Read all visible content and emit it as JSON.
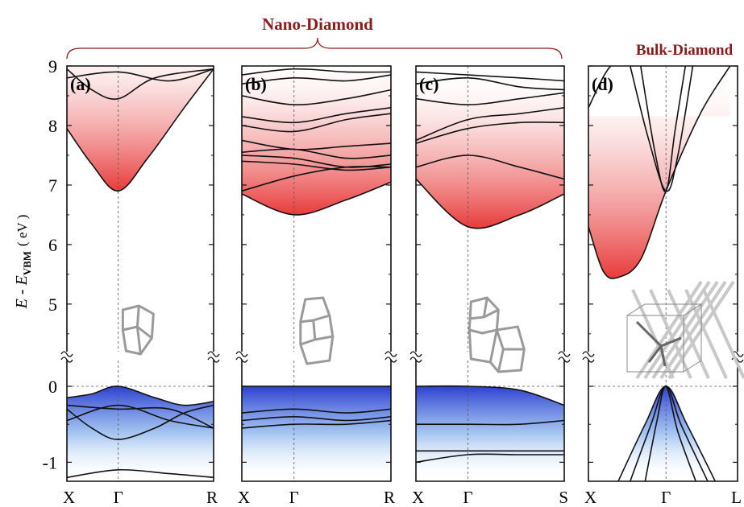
{
  "figure": {
    "group_label": "Nano-Diamond",
    "bulk_label": "Bulk-Diamond",
    "ylabel_main": "E - E",
    "ylabel_sub": "VBM",
    "ylabel_unit": "( eV )",
    "colors": {
      "bands": "#111111",
      "conduction_fill": "#e83a3a",
      "valence_fill": "#2d3fd0",
      "title": "#8b1a1a",
      "structure": "#9a9a9a"
    }
  },
  "chart_data": [
    {
      "type": "line",
      "panel": "(a)",
      "xticks": [
        "X",
        "Γ",
        "R"
      ],
      "ylim_upper": [
        4.2,
        9
      ],
      "ylim_lower": [
        -1.25,
        0.35
      ],
      "ytick_labels": [
        "9",
        "8",
        "7",
        "6",
        "5",
        "0",
        "-1"
      ],
      "cbm": 6.9,
      "vbm": 0.0,
      "bands": [
        {
          "x": [
            0,
            0.17,
            0.35,
            0.55,
            0.8,
            1
          ],
          "y": [
            7.95,
            7.35,
            6.9,
            7.45,
            8.3,
            8.95
          ]
        },
        {
          "x": [
            0,
            0.17,
            0.35,
            0.6,
            1
          ],
          "y": [
            8.95,
            8.6,
            8.45,
            8.8,
            8.95
          ]
        },
        {
          "x": [
            0,
            0.35,
            0.7,
            1
          ],
          "y": [
            8.8,
            8.9,
            8.75,
            8.95
          ]
        },
        {
          "x": [
            0,
            0.17,
            0.35,
            0.6,
            0.8,
            1
          ],
          "y": [
            -0.15,
            -0.1,
            0.0,
            -0.15,
            -0.25,
            -0.2
          ]
        },
        {
          "x": [
            0,
            0.35,
            0.7,
            1
          ],
          "y": [
            -0.25,
            -0.3,
            -0.3,
            -0.55
          ]
        },
        {
          "x": [
            0,
            0.17,
            0.35,
            0.6,
            0.8,
            1
          ],
          "y": [
            -0.3,
            -0.55,
            -0.7,
            -0.55,
            -0.35,
            -0.25
          ]
        },
        {
          "x": [
            0,
            0.35,
            0.7,
            1
          ],
          "y": [
            -0.45,
            -0.25,
            -0.45,
            -0.55
          ]
        },
        {
          "x": [
            0,
            0.35,
            0.7,
            1
          ],
          "y": [
            -1.2,
            -1.1,
            -1.15,
            -1.2
          ]
        }
      ]
    },
    {
      "type": "line",
      "panel": "(b)",
      "xticks": [
        "X",
        "Γ",
        "R"
      ],
      "ylim_upper": [
        4.2,
        9
      ],
      "ylim_lower": [
        -1.25,
        0.35
      ],
      "ytick_labels": [],
      "cbm": 6.5,
      "vbm": 0.0,
      "bands": [
        {
          "x": [
            0,
            0.35,
            0.7,
            1
          ],
          "y": [
            6.85,
            6.5,
            6.75,
            7.05
          ]
        },
        {
          "x": [
            0,
            0.35,
            0.7,
            1
          ],
          "y": [
            6.9,
            7.15,
            7.3,
            7.3
          ]
        },
        {
          "x": [
            0,
            0.35,
            0.7,
            1
          ],
          "y": [
            7.4,
            7.35,
            7.25,
            7.3
          ]
        },
        {
          "x": [
            0,
            0.35,
            0.7,
            1
          ],
          "y": [
            7.5,
            7.45,
            7.3,
            7.35
          ]
        },
        {
          "x": [
            0,
            0.35,
            0.7,
            1
          ],
          "y": [
            7.55,
            7.6,
            7.45,
            7.5
          ]
        },
        {
          "x": [
            0,
            0.35,
            0.7,
            1
          ],
          "y": [
            7.75,
            7.6,
            7.65,
            7.7
          ]
        },
        {
          "x": [
            0,
            0.35,
            0.7,
            1
          ],
          "y": [
            8.0,
            7.9,
            8.1,
            8.2
          ]
        },
        {
          "x": [
            0,
            0.35,
            0.7,
            1
          ],
          "y": [
            8.15,
            8.05,
            8.2,
            8.3
          ]
        },
        {
          "x": [
            0,
            0.35,
            0.7,
            1
          ],
          "y": [
            8.5,
            8.35,
            8.45,
            8.6
          ]
        },
        {
          "x": [
            0,
            0.35,
            0.7,
            1
          ],
          "y": [
            8.7,
            8.8,
            8.75,
            8.85
          ]
        },
        {
          "x": [
            0,
            0.35,
            0.7,
            1
          ],
          "y": [
            8.85,
            8.95,
            8.9,
            8.9
          ]
        },
        {
          "x": [
            0,
            1
          ],
          "y": [
            0.0,
            0.0
          ]
        },
        {
          "x": [
            0,
            0.35,
            0.7,
            1
          ],
          "y": [
            -0.35,
            -0.3,
            -0.35,
            -0.3
          ]
        },
        {
          "x": [
            0,
            0.35,
            0.7,
            1
          ],
          "y": [
            -0.45,
            -0.4,
            -0.45,
            -0.4
          ]
        },
        {
          "x": [
            0,
            0.35,
            0.7,
            1
          ],
          "y": [
            -0.55,
            -0.5,
            -0.5,
            -0.45
          ]
        }
      ]
    },
    {
      "type": "line",
      "panel": "(c)",
      "xticks": [
        "X",
        "Γ",
        "S"
      ],
      "ylim_upper": [
        4.2,
        9
      ],
      "ylim_lower": [
        -1.25,
        0.35
      ],
      "ytick_labels": [],
      "cbm": 6.3,
      "vbm": 0.0,
      "bands": [
        {
          "x": [
            0,
            0.35,
            0.7,
            1
          ],
          "y": [
            7.1,
            6.3,
            6.5,
            6.85
          ]
        },
        {
          "x": [
            0,
            0.35,
            0.7,
            1
          ],
          "y": [
            7.3,
            7.5,
            7.3,
            7.1
          ]
        },
        {
          "x": [
            0,
            0.35,
            0.7,
            1
          ],
          "y": [
            7.7,
            7.95,
            8.05,
            8.05
          ]
        },
        {
          "x": [
            0,
            0.35,
            0.7,
            1
          ],
          "y": [
            7.75,
            8.1,
            8.2,
            8.3
          ]
        },
        {
          "x": [
            0,
            0.35,
            0.7,
            1
          ],
          "y": [
            8.45,
            8.35,
            8.45,
            8.55
          ]
        },
        {
          "x": [
            0,
            0.35,
            0.7,
            1
          ],
          "y": [
            8.7,
            8.8,
            8.65,
            8.6
          ]
        },
        {
          "x": [
            0,
            0.35,
            0.7,
            1
          ],
          "y": [
            8.9,
            8.85,
            8.8,
            8.75
          ]
        },
        {
          "x": [
            0,
            0.35,
            0.7,
            1
          ],
          "y": [
            0.0,
            0.0,
            -0.05,
            -0.25
          ]
        },
        {
          "x": [
            0,
            0.35,
            0.7,
            1
          ],
          "y": [
            -0.5,
            -0.5,
            -0.5,
            -0.45
          ]
        },
        {
          "x": [
            0,
            0.35,
            0.7,
            1
          ],
          "y": [
            -0.85,
            -0.85,
            -0.85,
            -0.85
          ]
        },
        {
          "x": [
            0,
            0.35,
            0.7,
            1
          ],
          "y": [
            -1.0,
            -0.9,
            -0.9,
            -0.9
          ]
        }
      ]
    },
    {
      "type": "line",
      "panel": "(d)",
      "xticks": [
        "X",
        "Γ",
        "L"
      ],
      "ylim_upper": [
        4.2,
        9
      ],
      "ylim_lower": [
        -1.25,
        0.35
      ],
      "ytick_labels": [],
      "cbm": 5.45,
      "vbm": 0.0,
      "bands": [
        {
          "x": [
            0,
            0.1,
            0.2,
            0.35,
            0.52,
            0.75,
            0.95
          ],
          "y": [
            6.3,
            5.55,
            5.45,
            5.75,
            6.9,
            8.2,
            9.0
          ]
        },
        {
          "x": [
            0,
            0.15,
            0.3
          ],
          "y": [
            8.3,
            9.0,
            9.0
          ]
        },
        {
          "x": [
            0.28,
            0.4,
            0.52,
            0.6,
            0.7
          ],
          "y": [
            9.0,
            7.8,
            6.9,
            7.5,
            9.0
          ]
        },
        {
          "x": [
            0.35,
            0.45,
            0.52,
            0.58,
            0.65
          ],
          "y": [
            9.0,
            7.5,
            6.9,
            7.9,
            9.0
          ]
        },
        {
          "x": [
            0.2,
            0.38,
            0.52,
            0.66,
            0.85
          ],
          "y": [
            -1.25,
            -0.5,
            0.0,
            -0.5,
            -1.25
          ]
        },
        {
          "x": [
            0.28,
            0.42,
            0.52,
            0.62,
            0.8
          ],
          "y": [
            -1.25,
            -0.5,
            0.0,
            -0.5,
            -1.25
          ]
        },
        {
          "x": [
            0.38,
            0.46,
            0.52,
            0.6,
            0.72
          ],
          "y": [
            -1.25,
            -0.45,
            0.0,
            -0.6,
            -1.25
          ]
        }
      ]
    }
  ]
}
